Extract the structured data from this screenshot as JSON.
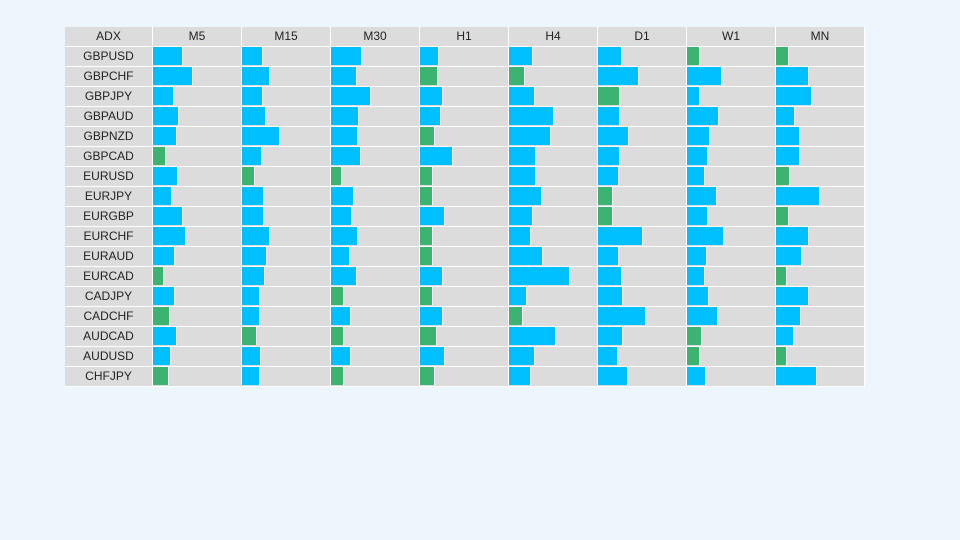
{
  "chart_data": {
    "type": "table",
    "corner_label": "ADX",
    "columns": [
      "M5",
      "M15",
      "M30",
      "H1",
      "H4",
      "D1",
      "W1",
      "MN"
    ],
    "rows": [
      "GBPUSD",
      "GBPCHF",
      "GBPJPY",
      "GBPAUD",
      "GBPNZD",
      "GBPCAD",
      "EURUSD",
      "EURJPY",
      "EURGBP",
      "EURCHF",
      "EURAUD",
      "EURCAD",
      "CADJPY",
      "CADCHF",
      "AUDCAD",
      "AUDUSD",
      "CHFJPY"
    ],
    "value_range": [
      0,
      100
    ],
    "colors": {
      "rising": "#00bfff",
      "falling": "#3cb371",
      "background": "#dcdcdc"
    },
    "values": [
      [
        34,
        24,
        35,
        22,
        27,
        27,
        15,
        15
      ],
      [
        45,
        32,
        29,
        20,
        18,
        47,
        40,
        38
      ],
      [
        24,
        24,
        45,
        26,
        29,
        25,
        15,
        41
      ],
      [
        29,
        27,
        32,
        24,
        51,
        25,
        36,
        22
      ],
      [
        27,
        43,
        31,
        17,
        48,
        35,
        26,
        27
      ],
      [
        15,
        23,
        34,
        37,
        31,
        25,
        24,
        27
      ],
      [
        28,
        15,
        13,
        15,
        31,
        24,
        20,
        16
      ],
      [
        22,
        25,
        26,
        15,
        38,
        17,
        34,
        50
      ],
      [
        34,
        25,
        24,
        28,
        27,
        17,
        24,
        15
      ],
      [
        37,
        32,
        31,
        15,
        25,
        51,
        42,
        38
      ],
      [
        25,
        28,
        22,
        15,
        39,
        24,
        23,
        29
      ],
      [
        13,
        26,
        29,
        26,
        69,
        27,
        20,
        13
      ],
      [
        25,
        20,
        15,
        15,
        20,
        28,
        25,
        38
      ],
      [
        19,
        20,
        23,
        26,
        16,
        54,
        35,
        28
      ],
      [
        27,
        17,
        15,
        19,
        53,
        28,
        17,
        21
      ],
      [
        21,
        22,
        23,
        28,
        29,
        23,
        15,
        12
      ],
      [
        18,
        21,
        15,
        17,
        25,
        34,
        22,
        47
      ]
    ],
    "direction": [
      [
        "rising",
        "rising",
        "rising",
        "rising",
        "rising",
        "rising",
        "falling",
        "falling"
      ],
      [
        "rising",
        "rising",
        "rising",
        "falling",
        "falling",
        "rising",
        "rising",
        "rising"
      ],
      [
        "rising",
        "rising",
        "rising",
        "rising",
        "rising",
        "falling",
        "rising",
        "rising"
      ],
      [
        "rising",
        "rising",
        "rising",
        "rising",
        "rising",
        "rising",
        "rising",
        "rising"
      ],
      [
        "rising",
        "rising",
        "rising",
        "falling",
        "rising",
        "rising",
        "rising",
        "rising"
      ],
      [
        "falling",
        "rising",
        "rising",
        "rising",
        "rising",
        "rising",
        "rising",
        "rising"
      ],
      [
        "rising",
        "falling",
        "falling",
        "falling",
        "rising",
        "rising",
        "rising",
        "falling"
      ],
      [
        "rising",
        "rising",
        "rising",
        "falling",
        "rising",
        "falling",
        "rising",
        "rising"
      ],
      [
        "rising",
        "rising",
        "rising",
        "rising",
        "rising",
        "falling",
        "rising",
        "falling"
      ],
      [
        "rising",
        "rising",
        "rising",
        "falling",
        "rising",
        "rising",
        "rising",
        "rising"
      ],
      [
        "rising",
        "rising",
        "rising",
        "falling",
        "rising",
        "rising",
        "rising",
        "rising"
      ],
      [
        "falling",
        "rising",
        "rising",
        "rising",
        "rising",
        "rising",
        "rising",
        "falling"
      ],
      [
        "rising",
        "rising",
        "falling",
        "falling",
        "rising",
        "rising",
        "rising",
        "rising"
      ],
      [
        "falling",
        "rising",
        "rising",
        "rising",
        "falling",
        "rising",
        "rising",
        "rising"
      ],
      [
        "rising",
        "falling",
        "falling",
        "falling",
        "rising",
        "rising",
        "falling",
        "rising"
      ],
      [
        "rising",
        "rising",
        "rising",
        "rising",
        "rising",
        "rising",
        "falling",
        "falling"
      ],
      [
        "falling",
        "rising",
        "falling",
        "falling",
        "rising",
        "rising",
        "rising",
        "rising"
      ]
    ]
  }
}
